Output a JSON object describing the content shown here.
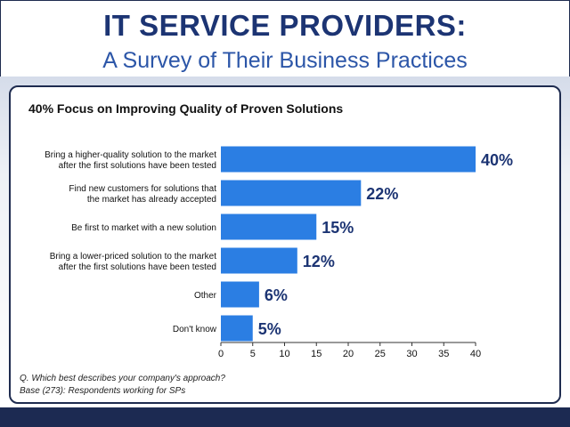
{
  "header": {
    "title": "IT SERVICE PROVIDERS:",
    "subtitle": "A Survey of Their Business Practices"
  },
  "colors": {
    "bar": "#2b7ee3",
    "title": "#1c3473",
    "subtitle": "#2c56a8",
    "value_label": "#1c3473",
    "footer_bar": "#1c2a52"
  },
  "chart_data": {
    "type": "bar",
    "orientation": "horizontal",
    "title": "40% Focus on Improving Quality of Proven Solutions",
    "categories": [
      [
        "Bring a higher-quality solution to the market",
        "after the first solutions have been tested"
      ],
      [
        "Find new customers for solutions that",
        "the market has already accepted"
      ],
      [
        "Be first to market with a new solution"
      ],
      [
        "Bring a lower-priced solution to the market",
        "after the first solutions have been tested"
      ],
      [
        "Other"
      ],
      [
        "Don't know"
      ]
    ],
    "values": [
      40,
      22,
      15,
      12,
      6,
      5
    ],
    "value_labels": [
      "40%",
      "22%",
      "15%",
      "12%",
      "6%",
      "5%"
    ],
    "xlim": [
      0,
      40
    ],
    "xticks": [
      0,
      5,
      10,
      15,
      20,
      25,
      30,
      35,
      40
    ],
    "xlabel": "",
    "ylabel": "",
    "grid": false,
    "legend": "none"
  },
  "notes": {
    "question": "Q. Which best describes your company's approach?",
    "base": "Base (273):  Respondents working for SPs"
  }
}
